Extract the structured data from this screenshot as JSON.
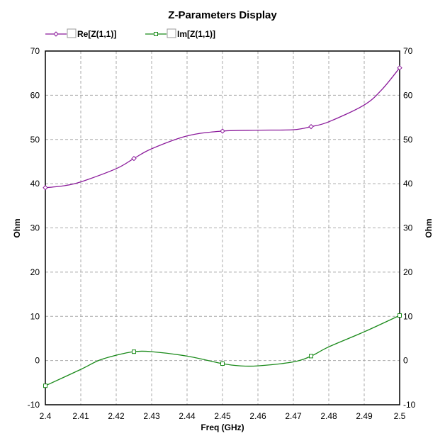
{
  "chart_data": {
    "type": "line",
    "title": "Z-Parameters Display",
    "xlabel": "Freq (GHz)",
    "ylabel": "Ohm",
    "ylabel_right": "Ohm",
    "xlim": [
      2.4,
      2.5
    ],
    "ylim": [
      -10,
      70
    ],
    "xticks": [
      "2.4",
      "2.41",
      "2.42",
      "2.43",
      "2.44",
      "2.45",
      "2.46",
      "2.47",
      "2.48",
      "2.49",
      "2.5"
    ],
    "yticks": [
      "70",
      "60",
      "50",
      "40",
      "30",
      "20",
      "10",
      "0",
      "-10"
    ],
    "grid": true,
    "legend_position": "top-left",
    "series": [
      {
        "name": "Re[Z(1,1)]",
        "color": "#8b1a9b",
        "marker": "diamond",
        "markers_x": [
          2.4,
          2.425,
          2.45,
          2.475,
          2.5
        ],
        "markers_y": [
          39.1,
          45.7,
          51.9,
          52.9,
          66.2
        ],
        "x": [
          2.4,
          2.405,
          2.41,
          2.42,
          2.425,
          2.43,
          2.44,
          2.45,
          2.46,
          2.47,
          2.475,
          2.48,
          2.49,
          2.495,
          2.5
        ],
        "y": [
          39.1,
          39.5,
          40.4,
          43.4,
          45.7,
          47.9,
          50.8,
          51.9,
          52.1,
          52.2,
          52.9,
          54.0,
          57.8,
          61.3,
          66.2
        ]
      },
      {
        "name": "Im[Z(1,1)]",
        "color": "#1a8a1a",
        "marker": "square",
        "markers_x": [
          2.4,
          2.425,
          2.45,
          2.475,
          2.5
        ],
        "markers_y": [
          -5.7,
          2.0,
          -0.7,
          1.0,
          10.2
        ],
        "x": [
          2.4,
          2.41,
          2.415,
          2.42,
          2.425,
          2.43,
          2.44,
          2.45,
          2.455,
          2.46,
          2.47,
          2.475,
          2.48,
          2.49,
          2.5
        ],
        "y": [
          -5.7,
          -2.0,
          0.0,
          1.2,
          2.0,
          2.0,
          1.0,
          -0.7,
          -1.2,
          -1.2,
          -0.3,
          1.0,
          3.1,
          6.5,
          10.2
        ]
      }
    ]
  }
}
